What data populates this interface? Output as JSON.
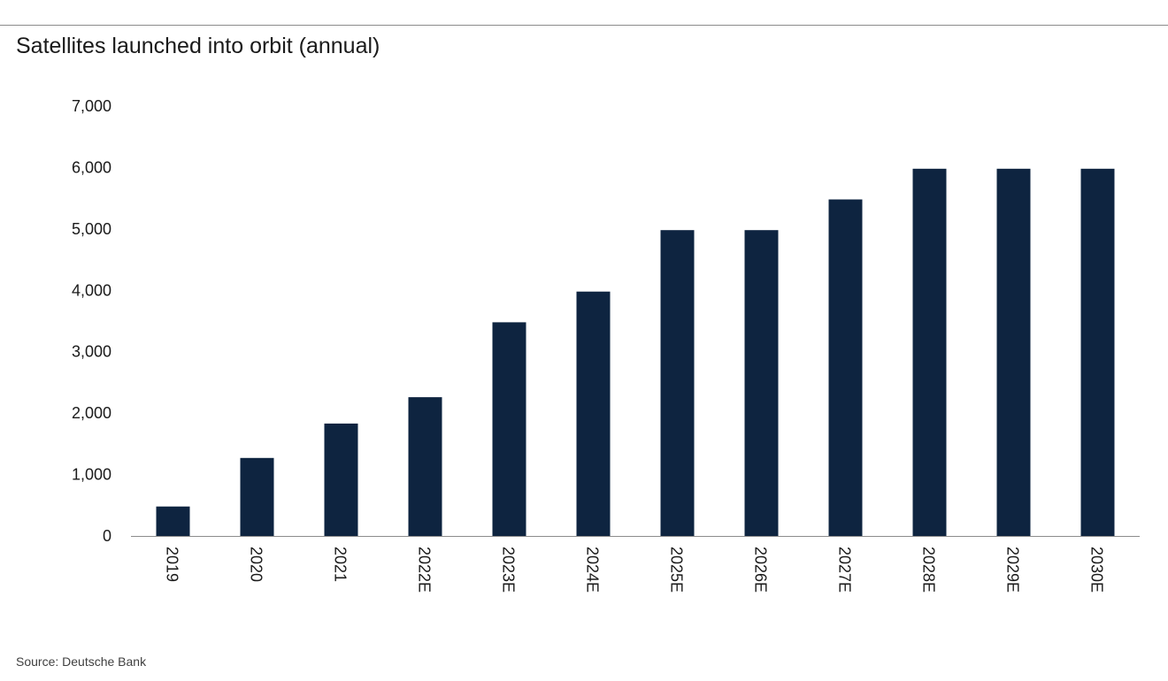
{
  "chart_data": {
    "type": "bar",
    "title": "Satellites launched into orbit (annual)",
    "xlabel": "",
    "ylabel": "",
    "categories": [
      "2019",
      "2020",
      "2021",
      "2022E",
      "2023E",
      "2024E",
      "2025E",
      "2026E",
      "2027E",
      "2028E",
      "2029E",
      "2030E"
    ],
    "values": [
      480,
      1270,
      1830,
      2260,
      3480,
      3980,
      4980,
      4980,
      5480,
      5980,
      5980,
      5980
    ],
    "ylim": [
      0,
      7000
    ],
    "yticks": [
      0,
      1000,
      2000,
      3000,
      4000,
      5000,
      6000,
      7000
    ],
    "ytick_labels": [
      "0",
      "1,000",
      "2,000",
      "3,000",
      "4,000",
      "5,000",
      "6,000",
      "7,000"
    ],
    "grid": false,
    "legend": "none",
    "bar_color": "#0e2440",
    "source": "Source: Deutsche Bank"
  }
}
